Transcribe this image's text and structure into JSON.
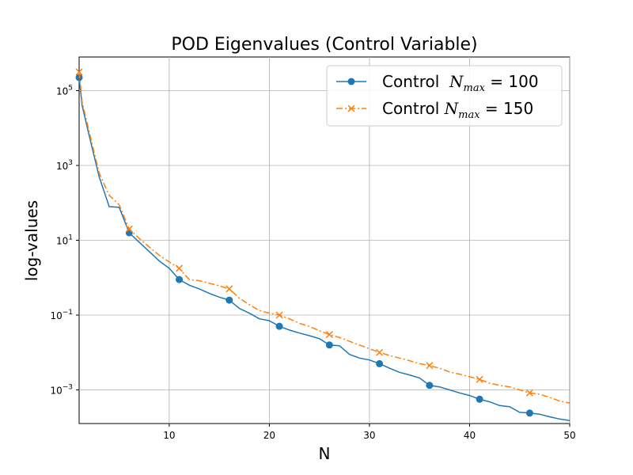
{
  "chart_data": {
    "type": "line",
    "title": "POD Eigenvalues (Control Variable)",
    "xlabel": "N",
    "ylabel": "log-values",
    "yscale": "log",
    "xlim": [
      1,
      50
    ],
    "ylim_log10": [
      -3.9,
      5.9
    ],
    "grid": true,
    "legend_position": "top-right",
    "x_ticks": [
      10,
      20,
      30,
      40,
      50
    ],
    "y_ticks": [
      {
        "exp": 5,
        "base": "10",
        "sup": "5"
      },
      {
        "exp": 3,
        "base": "10",
        "sup": "3"
      },
      {
        "exp": 1,
        "base": "10",
        "sup": "1"
      },
      {
        "exp": -1,
        "base": "10",
        "sup": "−1"
      },
      {
        "exp": -3,
        "base": "10",
        "sup": "−3"
      }
    ],
    "series": [
      {
        "name": "Control  N_max = 100",
        "legend_plain": "Control  ",
        "legend_math_base": "N",
        "legend_math_sub": "max",
        "legend_math_rest": " = 100",
        "color": "#1f77b4",
        "marker": "circle",
        "linestyle": "solid",
        "x": [
          1,
          1.3,
          2,
          3,
          4,
          5,
          6,
          7,
          8,
          9,
          10,
          11,
          12,
          13,
          14,
          15,
          16,
          17,
          18,
          19,
          20,
          21,
          22,
          23,
          24,
          25,
          26,
          27,
          28,
          29,
          30,
          31,
          32,
          33,
          34,
          35,
          36,
          37,
          38,
          39,
          40,
          41,
          42,
          43,
          44,
          45,
          46,
          47,
          48,
          49,
          50
        ],
        "log10_y": [
          5.35,
          4.6,
          3.8,
          2.7,
          1.9,
          1.88,
          1.2,
          0.95,
          0.7,
          0.45,
          0.25,
          -0.05,
          -0.2,
          -0.3,
          -0.42,
          -0.52,
          -0.6,
          -0.82,
          -0.95,
          -1.1,
          -1.15,
          -1.3,
          -1.4,
          -1.48,
          -1.55,
          -1.63,
          -1.8,
          -1.82,
          -2.05,
          -2.15,
          -2.2,
          -2.3,
          -2.42,
          -2.53,
          -2.6,
          -2.68,
          -2.88,
          -2.92,
          -3.0,
          -3.08,
          -3.15,
          -3.25,
          -3.32,
          -3.42,
          -3.45,
          -3.6,
          -3.62,
          -3.65,
          -3.72,
          -3.78,
          -3.82
        ],
        "marker_x": [
          1,
          6,
          11,
          16,
          21,
          26,
          31,
          36,
          41,
          46
        ]
      },
      {
        "name": "Control N_max = 150",
        "legend_plain": "Control ",
        "legend_math_base": "N",
        "legend_math_sub": "max",
        "legend_math_rest": " = 150",
        "color": "#ff7f0e",
        "marker": "x",
        "linestyle": "dashdot",
        "x": [
          1,
          1.3,
          2,
          3,
          4,
          5,
          6,
          7,
          8,
          9,
          10,
          11,
          12,
          13,
          14,
          15,
          16,
          17,
          18,
          19,
          20,
          21,
          22,
          23,
          24,
          25,
          26,
          27,
          28,
          29,
          30,
          31,
          32,
          33,
          34,
          35,
          36,
          37,
          38,
          39,
          40,
          41,
          42,
          43,
          44,
          45,
          46,
          47,
          48,
          49,
          50
        ],
        "log10_y": [
          5.5,
          4.7,
          3.9,
          2.8,
          2.2,
          1.95,
          1.3,
          1.05,
          0.82,
          0.6,
          0.42,
          0.25,
          -0.05,
          -0.08,
          -0.15,
          -0.22,
          -0.3,
          -0.55,
          -0.72,
          -0.88,
          -0.95,
          -1.0,
          -1.1,
          -1.22,
          -1.3,
          -1.42,
          -1.52,
          -1.6,
          -1.7,
          -1.8,
          -1.9,
          -2.0,
          -2.08,
          -2.15,
          -2.22,
          -2.3,
          -2.35,
          -2.42,
          -2.52,
          -2.58,
          -2.65,
          -2.72,
          -2.82,
          -2.88,
          -2.92,
          -3.0,
          -3.08,
          -3.12,
          -3.2,
          -3.3,
          -3.35
        ],
        "marker_x": [
          1,
          6,
          11,
          16,
          21,
          26,
          31,
          36,
          41,
          46
        ]
      }
    ]
  }
}
